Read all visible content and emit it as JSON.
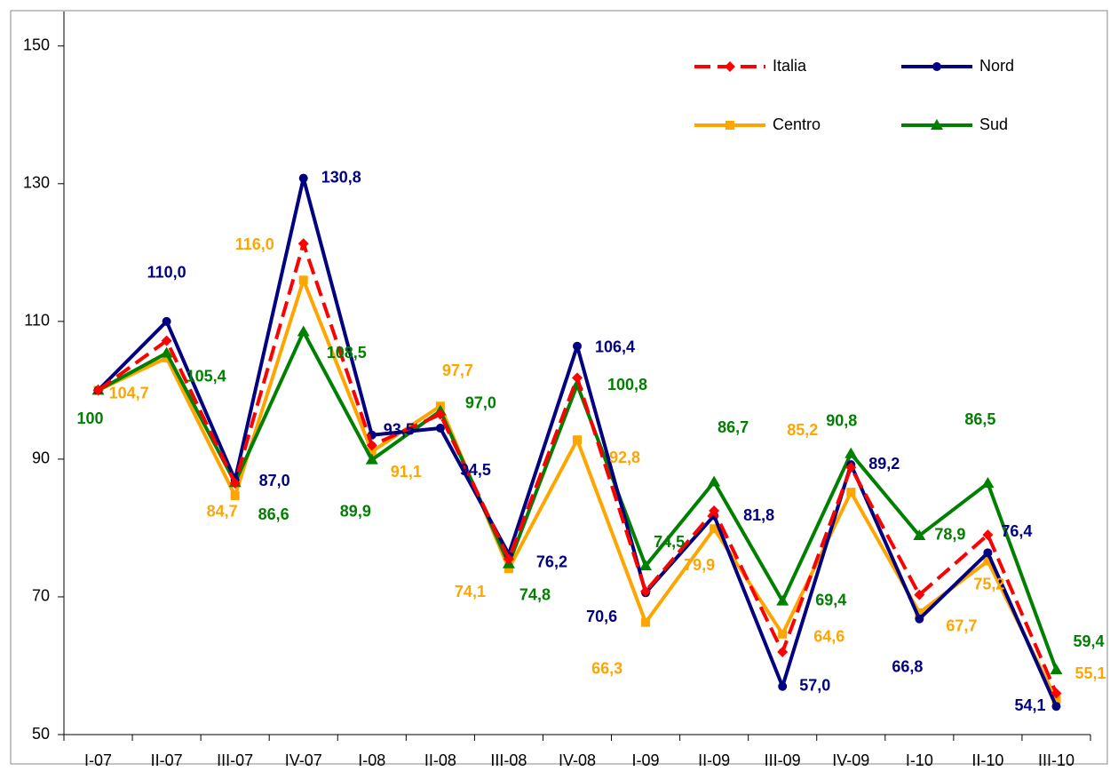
{
  "chart_data": {
    "type": "line",
    "categories": [
      "I-07",
      "II-07",
      "III-07",
      "IV-07",
      "I-08",
      "II-08",
      "III-08",
      "IV-08",
      "I-09",
      "II-09",
      "III-09",
      "IV-09",
      "I-10",
      "II-10",
      "III-10"
    ],
    "series": [
      {
        "name": "Italia",
        "color": "#ff0000",
        "marker": "diamond",
        "dashed": true,
        "values": [
          100,
          107.2,
          86.5,
          121.3,
          92,
          96.5,
          75.5,
          101.8,
          70.8,
          82.5,
          62,
          88.8,
          70.3,
          79,
          56
        ]
      },
      {
        "name": "Nord",
        "color": "#000080",
        "marker": "circle",
        "values": [
          100,
          110.0,
          87.0,
          130.8,
          93.5,
          94.5,
          76.2,
          106.4,
          70.6,
          81.8,
          57.0,
          89.2,
          66.8,
          76.4,
          54.1
        ],
        "value_labels": [
          null,
          "110,0",
          "87,0",
          "130,8",
          "93,5",
          "94,5",
          "76,2",
          "106,4",
          "70,6",
          "81,8",
          "57,0",
          "89,2",
          "66,8",
          "76,4",
          "54,1"
        ]
      },
      {
        "name": "Centro",
        "color": "#ffa500",
        "marker": "square",
        "values": [
          100,
          104.7,
          84.7,
          116.0,
          91.1,
          97.7,
          74.1,
          92.8,
          66.3,
          79.9,
          64.6,
          85.2,
          67.7,
          75.2,
          55.1
        ],
        "value_labels": [
          null,
          "104,7",
          "84,7",
          "116,0",
          "91,1",
          "97,7",
          "74,1",
          "92,8",
          "66,3",
          "79,9",
          "64,6",
          "85,2",
          "67,7",
          "75,2",
          "55,1"
        ]
      },
      {
        "name": "Sud",
        "color": "#008000",
        "marker": "triangle",
        "values": [
          100,
          105.4,
          86.6,
          108.5,
          89.9,
          97.0,
          74.8,
          100.8,
          74.5,
          86.7,
          69.4,
          90.8,
          78.9,
          86.5,
          59.4
        ],
        "value_labels": [
          "100",
          "105,4",
          "86,6",
          "108,5",
          "89,9",
          "97,0",
          "74,8",
          "100,8",
          "74,5",
          "86,7",
          "69,4",
          "90,8",
          "78,9",
          "86,5",
          "59,4"
        ]
      }
    ],
    "ylim": [
      50,
      155
    ],
    "yticks": [
      50,
      70,
      90,
      110,
      130,
      150
    ],
    "grid": false,
    "legend": "upper right"
  }
}
